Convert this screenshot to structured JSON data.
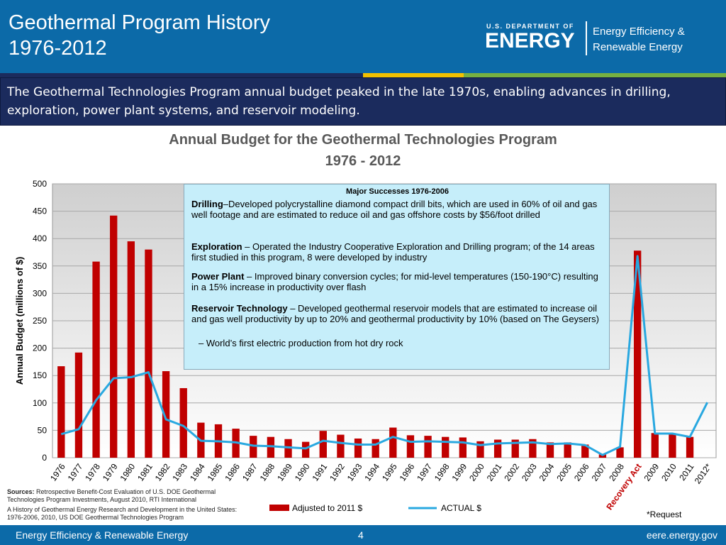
{
  "header": {
    "title": "Geothermal Program History\n1976-2012",
    "logo_dept": "U.S. DEPARTMENT OF",
    "logo_name": "ENERGY",
    "logo_office": "Energy Efficiency &\nRenewable Energy"
  },
  "subtitle_text": "The Geothermal  Technologies Program annual budget peaked in the late 1970s, enabling  advances in drilling, exploration, power plant  systems, and reservoir modeling.",
  "colors": {
    "header_blue": "#0c6aa8",
    "navy": "#1b2b5d",
    "bar_red": "#c00000",
    "line_blue": "#29a8e0",
    "stripe_yellow": "#f3c000",
    "stripe_green": "#76b041"
  },
  "overlay": {
    "heading": "Major Successes 1976-2006",
    "items": [
      {
        "term": "Drilling",
        "text": "–Developed polycrystalline diamond compact drill bits, which are used in 60% of oil and gas well footage and are estimated to reduce oil and gas offshore costs by $56/foot drilled"
      },
      {
        "term": "Exploration",
        "text": " – Operated the Industry Cooperative Exploration and Drilling program; of the 14 areas first studied in this program, 8 were developed by industry"
      },
      {
        "term": "Power Plant",
        "text": " – Improved binary conversion cycles; for mid-level temperatures (150-190°C) resulting in a 15% increase in productivity over flash"
      },
      {
        "term": "Reservoir Technology",
        "text": " – Developed geothermal reservoir models that are estimated to increase oil and gas well productivity by up to 20% and geothermal productivity by 10% (based on The Geysers)"
      },
      {
        "term": "",
        "text": "– World’s first electric production from hot dry rock"
      }
    ]
  },
  "chart_data": {
    "type": "bar",
    "title": "Annual Budget for the Geothermal Technologies Program",
    "subtitle": "1976 - 2012",
    "ylabel": "Annual Budget (millions of $)",
    "xlabel": "",
    "ylim": [
      0,
      500
    ],
    "yticks": [
      0,
      50,
      100,
      150,
      200,
      250,
      300,
      350,
      400,
      450,
      500
    ],
    "grid": true,
    "legend_position": "bottom",
    "categories": [
      "1976",
      "1977",
      "1978",
      "1979",
      "1980",
      "1981",
      "1982",
      "1983",
      "1984",
      "1985",
      "1986",
      "1987",
      "1988",
      "1989",
      "1990",
      "1991",
      "1992",
      "1993",
      "1994",
      "1995",
      "1996",
      "1997",
      "1998",
      "1999",
      "2000",
      "2001",
      "2002",
      "2003",
      "2004",
      "2005",
      "2006",
      "2007",
      "2008",
      "Recovery Act",
      "2009",
      "2010",
      "2011",
      "2012*"
    ],
    "series": [
      {
        "name": "Adjusted to 2011 $",
        "type": "bar",
        "color": "#c00000",
        "values": [
          167,
          192,
          358,
          442,
          395,
          380,
          158,
          127,
          64,
          61,
          53,
          40,
          38,
          34,
          29,
          49,
          42,
          35,
          34,
          55,
          41,
          40,
          38,
          37,
          30,
          33,
          33,
          34,
          28,
          28,
          24,
          6,
          19,
          378,
          45,
          44,
          38,
          null
        ]
      },
      {
        "name": "ACTUAL $",
        "type": "line",
        "color": "#29a8e0",
        "values": [
          43,
          52,
          105,
          145,
          147,
          156,
          70,
          58,
          31,
          30,
          28,
          22,
          21,
          19,
          17,
          31,
          27,
          24,
          24,
          38,
          29,
          30,
          29,
          28,
          23,
          26,
          27,
          28,
          25,
          26,
          23,
          5,
          20,
          368,
          44,
          44,
          38,
          101
        ]
      }
    ],
    "annotations": [
      "*Request"
    ]
  },
  "sources": {
    "label": "Sources:",
    "line1": " Retrospective Benefit-Cost Evaluation of U.S. DOE Geothermal Technologies Program Investments, August 2010, RTI International",
    "line2": "A History of Geothermal Energy Research and Development in the United States: 1976-2006, 2010, US DOE Geothermal Technologies Program"
  },
  "footer": {
    "left": "Energy Efficiency & Renewable Energy",
    "page": "4",
    "right": "eere.energy.gov"
  }
}
